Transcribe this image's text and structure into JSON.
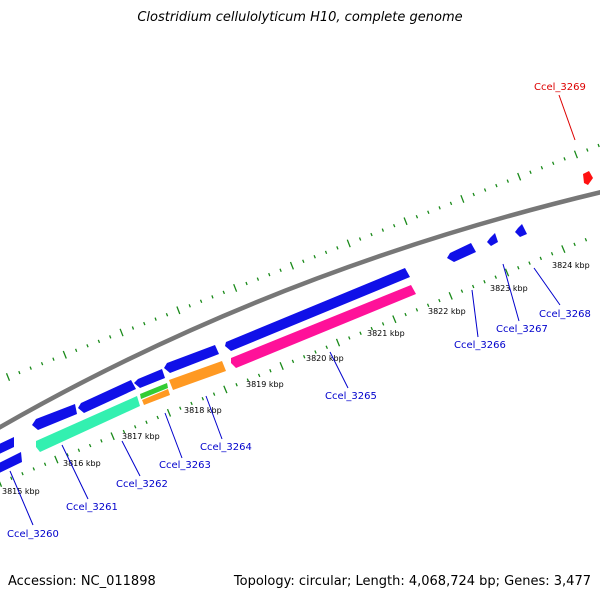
{
  "title": "Clostridium cellulolyticum H10, complete genome",
  "footer": {
    "accession": "Accession: NC_011898",
    "summary": "Topology: circular; Length: 4,068,724 bp; Genes: 3,477"
  },
  "colors": {
    "backbone": "#808080",
    "ticks": "#1a8a1a",
    "gene_blue": "#1010e8",
    "gene_teal": "#33f0b0",
    "gene_orange": "#ff9922",
    "gene_green": "#33cc33",
    "gene_pink": "#ff1199",
    "gene_red": "#ff1111",
    "label_blue": "#0000cc",
    "label_red": "#dd0000"
  },
  "scale_labels": [
    "3815 kbp",
    "3816 kbp",
    "3817 kbp",
    "3818 kbp",
    "3819 kbp",
    "3820 kbp",
    "3821 kbp",
    "3822 kbp",
    "3823 kbp",
    "3824 kbp"
  ],
  "gene_labels": [
    "Ccel_3260",
    "Ccel_3261",
    "Ccel_3262",
    "Ccel_3263",
    "Ccel_3264",
    "Ccel_3265",
    "Ccel_3266",
    "Ccel_3267",
    "Ccel_3268",
    "Ccel_3269"
  ]
}
